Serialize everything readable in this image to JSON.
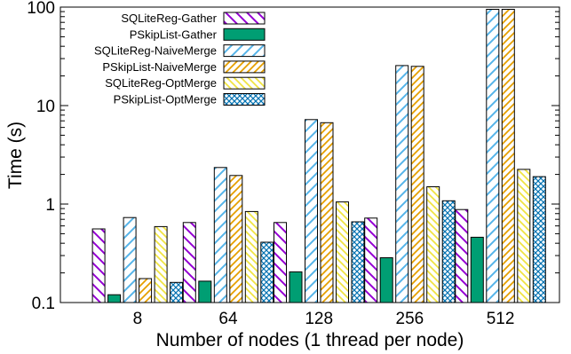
{
  "chart_data": {
    "type": "bar",
    "title": "",
    "xlabel": "Number of nodes (1 thread per node)",
    "ylabel": "Time (s)",
    "yscale": "log",
    "ylim": [
      0.1,
      100
    ],
    "yticks": [
      {
        "value": 0.1,
        "label": "0.1"
      },
      {
        "value": 1,
        "label": "1"
      },
      {
        "value": 10,
        "label": "10"
      },
      {
        "value": 100,
        "label": "100"
      }
    ],
    "categories": [
      "8",
      "64",
      "128",
      "256",
      "512"
    ],
    "legend_position": "top-left",
    "grid": false,
    "series": [
      {
        "name": "SQLiteReg-Gather",
        "color": "#9400d3",
        "pattern": "diag-down",
        "values": [
          0.56,
          0.65,
          0.65,
          0.72,
          0.88
        ]
      },
      {
        "name": "PSkipList-Gather",
        "color": "#009e73",
        "pattern": "solid",
        "values": [
          0.12,
          0.165,
          0.205,
          0.285,
          0.46
        ]
      },
      {
        "name": "SQLiteReg-NaiveMerge",
        "color": "#56b4e9",
        "pattern": "diag-up",
        "values": [
          0.73,
          2.35,
          7.2,
          25.5,
          95
        ]
      },
      {
        "name": "PSkipList-NaiveMerge",
        "color": "#e69f00",
        "pattern": "diag-up-dense",
        "values": [
          0.175,
          1.95,
          6.7,
          25,
          95
        ]
      },
      {
        "name": "SQLiteReg-OptMerge",
        "color": "#f0e442",
        "pattern": "diag-down-dense",
        "values": [
          0.59,
          0.84,
          1.05,
          1.5,
          2.25
        ]
      },
      {
        "name": "PSkipList-OptMerge",
        "color": "#0072b2",
        "pattern": "crosshatch",
        "values": [
          0.16,
          0.41,
          0.66,
          1.08,
          1.9
        ]
      }
    ]
  }
}
